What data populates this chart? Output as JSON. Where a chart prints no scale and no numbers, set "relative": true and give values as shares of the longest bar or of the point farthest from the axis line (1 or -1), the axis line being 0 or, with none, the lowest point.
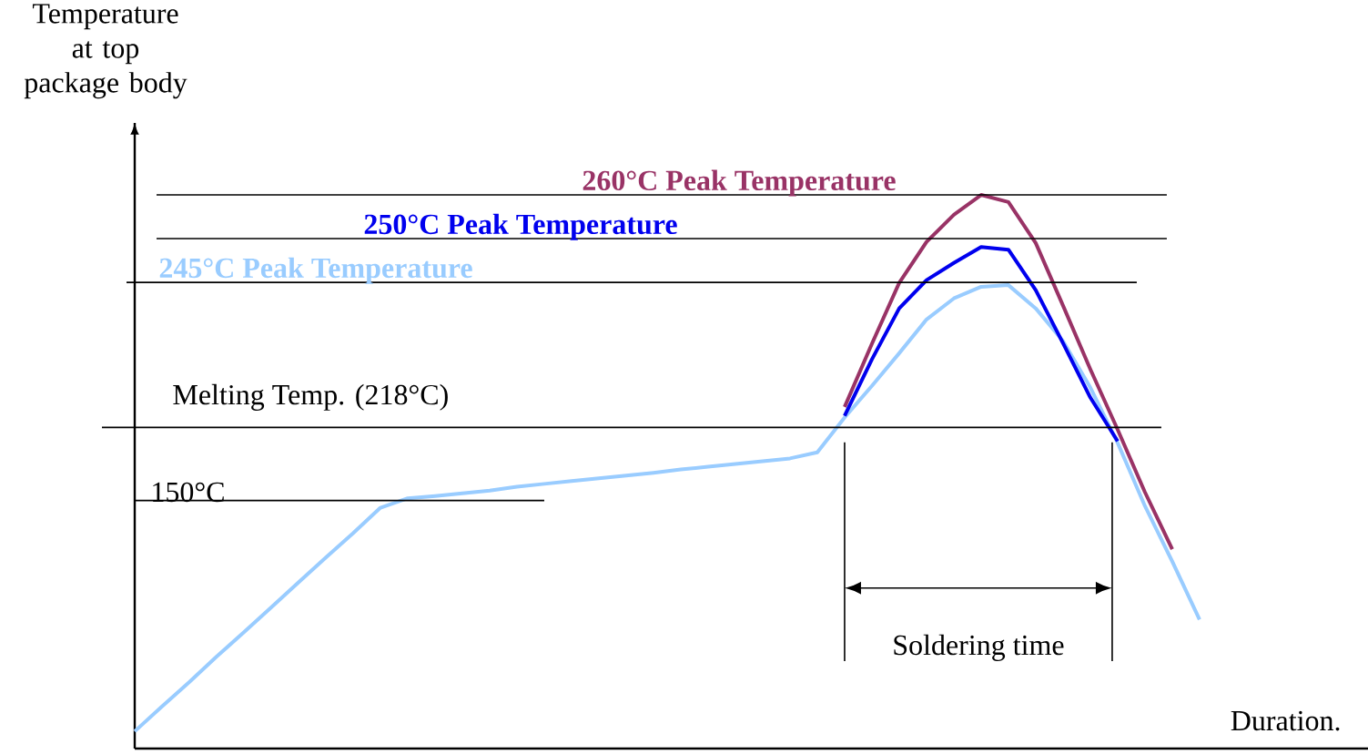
{
  "chart_data": {
    "type": "line",
    "relative": true,
    "ylabel": "Temperature at top package body",
    "xlabel": "Duration.",
    "categories": [
      null,
      null,
      null,
      null,
      null,
      null,
      null,
      null,
      null,
      null,
      null,
      null,
      null,
      null,
      null,
      null,
      null,
      null,
      null,
      null,
      null,
      null,
      null,
      null,
      null,
      null,
      null,
      null,
      null,
      null,
      null,
      null,
      null,
      null,
      null,
      null,
      null,
      null,
      null,
      null
    ],
    "series": [
      {
        "color": "#99ccff",
        "values": [
          0.031,
          0.076,
          0.12,
          0.166,
          0.21,
          0.255,
          0.3,
          0.345,
          0.389,
          0.435,
          0.452,
          0.456,
          0.461,
          0.466,
          0.473,
          0.478,
          0.483,
          0.488,
          0.493,
          0.498,
          0.504,
          0.509,
          0.514,
          0.519,
          0.524,
          0.535,
          0.598,
          0.655,
          0.714,
          0.775,
          0.813,
          0.834,
          0.837,
          0.795,
          0.736,
          0.652,
          0.552,
          0.438,
          0.338,
          0.233
        ]
      },
      {
        "color": "#0000ee",
        "values": [
          null,
          null,
          null,
          null,
          null,
          null,
          null,
          null,
          null,
          null,
          null,
          null,
          null,
          null,
          null,
          null,
          null,
          null,
          null,
          null,
          null,
          null,
          null,
          null,
          null,
          null,
          0.601,
          0.703,
          0.795,
          0.846,
          0.877,
          0.906,
          0.901,
          0.828,
          0.732,
          0.634,
          0.555,
          null,
          null,
          null
        ]
      },
      {
        "color": "#993366",
        "values": [
          null,
          null,
          null,
          null,
          null,
          null,
          null,
          null,
          null,
          null,
          null,
          null,
          null,
          null,
          null,
          null,
          null,
          null,
          null,
          null,
          null,
          null,
          null,
          null,
          null,
          null,
          0.617,
          0.731,
          0.841,
          0.915,
          0.964,
          1,
          0.987,
          0.913,
          0.8,
          0.685,
          0.576,
          0.463,
          0.36,
          null
        ]
      }
    ],
    "ref_lines": [
      {
        "axis": "y",
        "value": 0.448,
        "label": "150°C"
      },
      {
        "axis": "y",
        "value": 0.58,
        "label": "Melting Temp. (218°C)"
      },
      {
        "axis": "y",
        "value": 0.842,
        "label": "**245°C Peak Temperature**"
      },
      {
        "axis": "y",
        "value": 0.921,
        "label": "**250°C Peak Temperature**"
      },
      {
        "axis": "y",
        "value": 1,
        "label": "**260°C Peak Temperature**"
      }
    ],
    "annotations": [
      "Soldering time"
    ]
  }
}
